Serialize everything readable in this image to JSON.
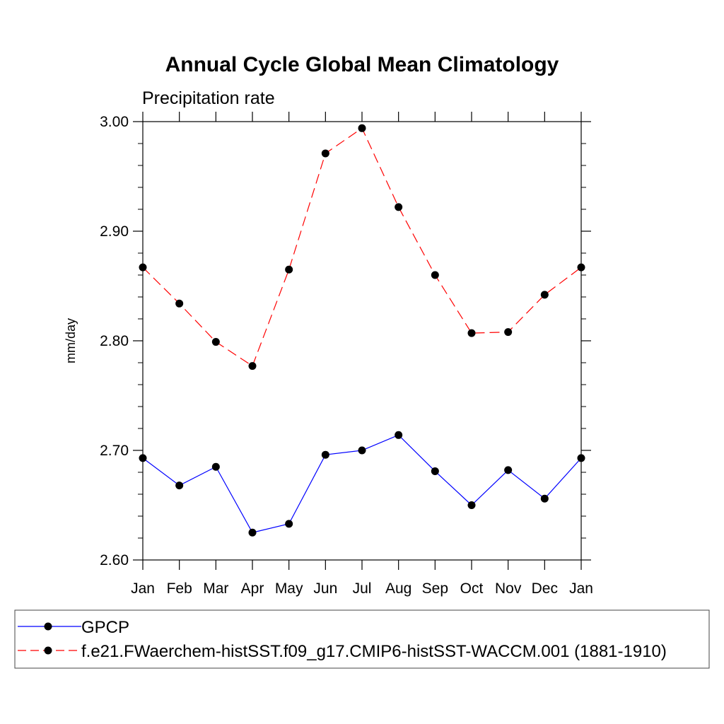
{
  "chart_data": {
    "type": "line",
    "title": "Annual Cycle Global Mean Climatology",
    "subtitle": "Precipitation rate",
    "xlabel": "",
    "ylabel": "mm/day",
    "categories": [
      "Jan",
      "Feb",
      "Mar",
      "Apr",
      "May",
      "Jun",
      "Jul",
      "Aug",
      "Sep",
      "Oct",
      "Nov",
      "Dec",
      "Jan"
    ],
    "ylim": [
      2.6,
      3.0
    ],
    "y_ticks": [
      2.6,
      2.7,
      2.8,
      2.9,
      3.0
    ],
    "y_tick_labels": [
      "2.60",
      "2.70",
      "2.80",
      "2.90",
      "3.00"
    ],
    "y_minor_step": 0.02,
    "grid": false,
    "legend_position": "bottom",
    "series": [
      {
        "name": "GPCP",
        "color": "#0000ff",
        "line_style": "solid",
        "marker": "filled-circle",
        "values": [
          2.693,
          2.668,
          2.685,
          2.625,
          2.633,
          2.696,
          2.7,
          2.714,
          2.681,
          2.65,
          2.682,
          2.656,
          2.693
        ]
      },
      {
        "name": "f.e21.FWaerchem-histSST.f09_g17.CMIP6-histSST-WACCM.001 (1881-1910)",
        "color": "#ff0000",
        "line_style": "dashed",
        "marker": "filled-circle",
        "values": [
          2.867,
          2.834,
          2.799,
          2.777,
          2.865,
          2.971,
          2.994,
          2.922,
          2.86,
          2.807,
          2.808,
          2.842,
          2.867
        ]
      }
    ]
  }
}
